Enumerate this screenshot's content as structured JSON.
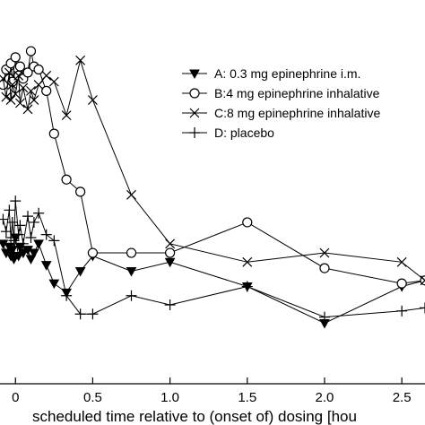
{
  "chart_data": {
    "type": "line",
    "title": "",
    "xlabel": "scheduled time relative to (onset of) dosing [hou",
    "ylabel": "",
    "xlim": [
      -0.1,
      2.65
    ],
    "x_ticks": [
      0.0,
      0.5,
      1.0,
      1.5,
      2.0,
      2.5
    ],
    "x_tick_labels": [
      "0",
      "0.5",
      "1.0",
      "1.5",
      "2.0",
      "2.5"
    ],
    "grid": false,
    "legend_position": "top-right",
    "series": [
      {
        "name": "A: 0.3 mg epinephrine i.m.",
        "marker": "triangle-down",
        "x": [
          -0.08,
          -0.06,
          -0.04,
          -0.03,
          -0.02,
          -0.01,
          0.0,
          0.02,
          0.03,
          0.05,
          0.08,
          0.1,
          0.12,
          0.15,
          0.2,
          0.25,
          0.33,
          0.42,
          0.5,
          0.75,
          1.0,
          1.5,
          2.0,
          2.5,
          2.65
        ],
        "y": [
          4.2,
          3.9,
          4.1,
          3.8,
          4.0,
          3.7,
          4.4,
          3.8,
          4.1,
          3.9,
          4.0,
          3.7,
          3.9,
          4.2,
          3.5,
          2.9,
          2.6,
          3.3,
          3.8,
          3.3,
          3.6,
          2.8,
          1.6,
          2.8,
          3.0
        ]
      },
      {
        "name": "B:4 mg epinephrine inhalative",
        "marker": "circle",
        "x": [
          -0.08,
          -0.06,
          -0.04,
          -0.03,
          -0.02,
          0.0,
          0.02,
          0.03,
          0.05,
          0.08,
          0.1,
          0.12,
          0.15,
          0.2,
          0.25,
          0.33,
          0.42,
          0.5,
          0.75,
          1.0,
          1.5,
          2.0,
          2.5,
          2.65
        ],
        "y": [
          9.4,
          9.9,
          9.6,
          10.1,
          9.5,
          10.3,
          9.7,
          10.0,
          9.6,
          9.8,
          10.5,
          10.0,
          9.9,
          9.2,
          7.8,
          6.3,
          5.9,
          3.9,
          3.9,
          3.9,
          4.9,
          3.4,
          2.9,
          3.0
        ]
      },
      {
        "name": "C:8 mg epinephrine inhalative",
        "marker": "x",
        "x": [
          -0.08,
          -0.06,
          -0.04,
          -0.03,
          -0.02,
          0.0,
          0.02,
          0.03,
          0.05,
          0.08,
          0.1,
          0.12,
          0.15,
          0.2,
          0.25,
          0.33,
          0.42,
          0.5,
          0.75,
          1.0,
          1.5,
          2.0,
          2.5,
          2.65
        ],
        "y": [
          9.6,
          9.0,
          9.8,
          8.9,
          9.4,
          9.1,
          9.7,
          8.8,
          9.3,
          8.6,
          9.2,
          8.9,
          9.4,
          9.7,
          9.5,
          8.4,
          10.2,
          8.9,
          5.8,
          4.2,
          3.6,
          3.9,
          3.6,
          3.0
        ]
      },
      {
        "name": "D: placebo",
        "marker": "plus",
        "x": [
          -0.08,
          -0.06,
          -0.04,
          -0.03,
          -0.02,
          -0.01,
          0.0,
          0.02,
          0.03,
          0.05,
          0.08,
          0.1,
          0.12,
          0.15,
          0.2,
          0.25,
          0.33,
          0.42,
          0.5,
          0.75,
          1.0,
          1.5,
          2.0,
          2.5,
          2.65
        ],
        "y": [
          5.0,
          4.6,
          5.3,
          4.4,
          4.9,
          4.3,
          5.6,
          4.5,
          4.8,
          4.2,
          5.1,
          4.4,
          4.9,
          5.2,
          4.5,
          4.3,
          2.5,
          1.9,
          1.9,
          2.5,
          2.2,
          2.8,
          1.8,
          2.0,
          2.1
        ]
      }
    ]
  }
}
